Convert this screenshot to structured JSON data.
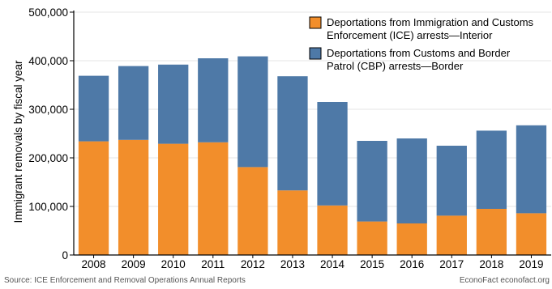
{
  "chart_data": {
    "type": "bar",
    "stacked": true,
    "ylabel": "Immigrant removals by fiscal year",
    "categories": [
      "2008",
      "2009",
      "2010",
      "2011",
      "2012",
      "2013",
      "2014",
      "2015",
      "2016",
      "2017",
      "2018",
      "2019"
    ],
    "ylim": [
      0,
      500000
    ],
    "yticks": [
      0,
      100000,
      200000,
      300000,
      400000,
      500000
    ],
    "ytick_labels": [
      "0",
      "100,000",
      "200,000",
      "300,000",
      "400,000",
      "500,000"
    ],
    "grid": true,
    "legend_position": "top-right",
    "series": [
      {
        "name": "Deportations from Immigration and Customs Enforcement (ICE) arrests—Interior",
        "legend_lines": [
          "Deportations from Immigration and Customs",
          "Enforcement (ICE) arrests—Interior"
        ],
        "color": "#f28e2b",
        "values": [
          234000,
          237000,
          229000,
          232000,
          181000,
          133000,
          102000,
          69000,
          65000,
          81000,
          95000,
          86000
        ]
      },
      {
        "name": "Deportations from Customs and Border Patrol (CBP) arrests—Border",
        "legend_lines": [
          "Deportations from Customs and Border",
          "Patrol (CBP) arrests—Border"
        ],
        "color": "#4e79a7",
        "values": [
          135000,
          152000,
          163000,
          173000,
          228000,
          235000,
          213000,
          166000,
          175000,
          144000,
          161000,
          181000
        ]
      }
    ]
  },
  "footer": {
    "source": "Source: ICE Enforcement and Removal Operations Annual Reports",
    "credit": "EconoFact  econofact.org"
  }
}
